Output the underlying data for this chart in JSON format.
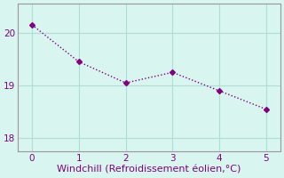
{
  "x": [
    0,
    1,
    2,
    3,
    4,
    5
  ],
  "y": [
    20.15,
    19.45,
    19.05,
    19.25,
    18.9,
    18.55
  ],
  "line_color": "#800080",
  "marker": "D",
  "marker_size": 3,
  "background_color": "#d8f5ef",
  "grid_color": "#b0ddd8",
  "spine_color": "#999999",
  "xlabel": "Windchill (Refroidissement éolien,°C)",
  "xlabel_color": "#800080",
  "xlabel_fontsize": 8,
  "tick_color": "#800080",
  "tick_labelsize": 7.5,
  "ylim": [
    17.75,
    20.55
  ],
  "yticks": [
    18,
    19,
    20
  ],
  "xlim": [
    -0.3,
    5.3
  ],
  "xticks": [
    0,
    1,
    2,
    3,
    4,
    5
  ]
}
